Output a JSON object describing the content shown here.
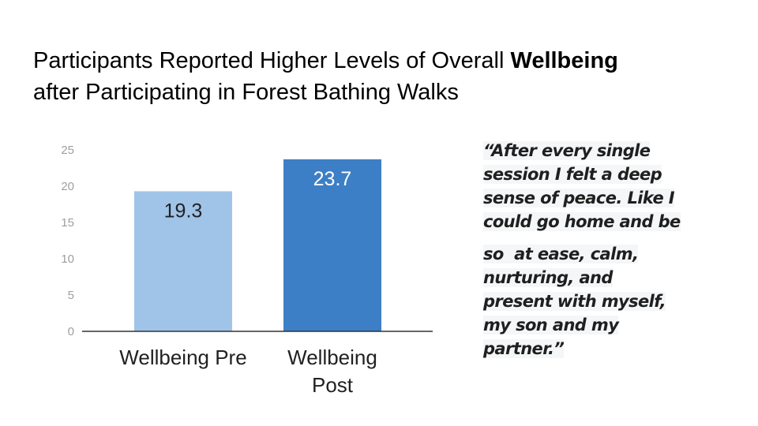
{
  "title": {
    "part1": "Participants Reported Higher Levels of Overall ",
    "bold": "Wellbeing",
    "part2": "after Participating in Forest Bathing Walks"
  },
  "quote": {
    "lines": [
      "“After every single",
      "session I felt a deep",
      "sense of peace. Like I",
      "could go home and be",
      "so  at ease, calm,",
      "nurturing, and",
      "present with myself,",
      "my son and my",
      "partner.”"
    ]
  },
  "chart_data": {
    "type": "bar",
    "categories": [
      "Wellbeing Pre",
      "Wellbeing Post"
    ],
    "category_lines": [
      [
        "Wellbeing Pre"
      ],
      [
        "Wellbeing",
        "Post"
      ]
    ],
    "values": [
      19.3,
      23.7
    ],
    "data_labels": [
      "19.3",
      "23.7"
    ],
    "ylim": [
      0,
      25
    ],
    "yticks": [
      0,
      5,
      10,
      15,
      20,
      25
    ],
    "grid": false,
    "legend": "none",
    "colors": [
      "#a0c4e8",
      "#3d7fc6"
    ],
    "label_colors": [
      "#212121",
      "#ffffff"
    ],
    "axis_color": "#333333",
    "tick_color": "#9e9e9e"
  }
}
